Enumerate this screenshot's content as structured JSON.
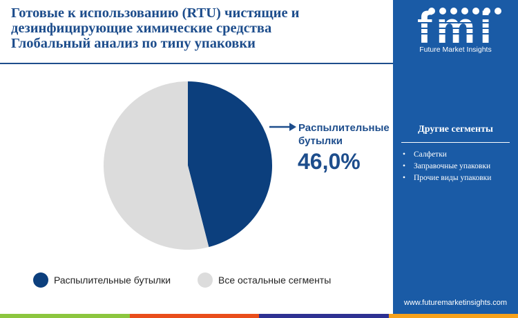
{
  "header": {
    "title_lines": [
      "Готовые к использованию (RTU) чистящие и",
      "дезинфицирующие химические средства",
      "Глобальный анализ по типу упаковки"
    ]
  },
  "brand": {
    "logo_text": "fmi",
    "logo_subtitle": "Future Market Insights",
    "website": "www.futuremarketinsights.com",
    "panel_color": "#1a5ba6"
  },
  "sidebar": {
    "title": "Другие сегменты",
    "items": [
      "Салфетки",
      "Заправочные упаковки",
      "Прочие виды упаковки"
    ]
  },
  "callout": {
    "label_lines": [
      "Распылительные",
      "бутылки"
    ],
    "value": "46,0%"
  },
  "chart_data": {
    "type": "pie",
    "slices": [
      {
        "label": "Распылительные бутылки",
        "value": 46.0,
        "color": "#0c3f7d"
      },
      {
        "label": "Все остальные сегменты",
        "value": 54.0,
        "color": "#dcdcdc"
      }
    ],
    "start": "12 o'clock",
    "direction": "clockwise",
    "legend_position": "bottom"
  },
  "footer_colors": [
    "#8cc63f",
    "#e94e1b",
    "#2e3192",
    "#f7a21b"
  ]
}
